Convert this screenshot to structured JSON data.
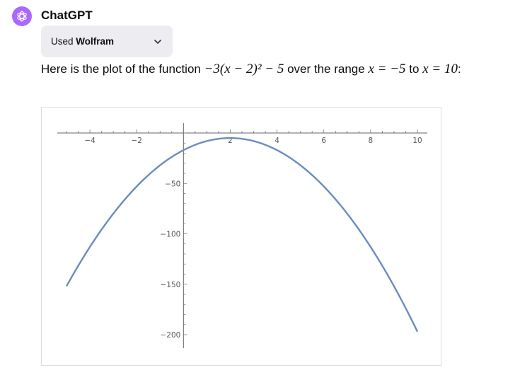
{
  "author": {
    "name": "ChatGPT",
    "avatar_color": "#ab68ff"
  },
  "tool_use": {
    "prefix": "Used",
    "tool_name": "Wolfram"
  },
  "message": {
    "before": "Here is the plot of the function",
    "function_tex": "−3(x − 2)² − 5",
    "middle": "over the range",
    "range_start": "x = −5",
    "to": "to",
    "range_end": "x = 10",
    "end": ":"
  },
  "chart_data": {
    "type": "line",
    "function": "-3(x-2)^2-5",
    "xlim": [
      -5,
      10
    ],
    "ylim": [
      -200,
      10
    ],
    "x": [
      -5,
      -4,
      -3,
      -2,
      -1,
      0,
      1,
      2,
      3,
      4,
      5,
      6,
      7,
      8,
      9,
      10
    ],
    "series": [
      {
        "values": [
          -152,
          -113,
          -80,
          -53,
          -32,
          -17,
          -8,
          -5,
          -8,
          -17,
          -32,
          -53,
          -80,
          -113,
          -152,
          -197
        ],
        "color": "#6a8cbf"
      }
    ],
    "x_ticks": [
      "-4",
      "-2",
      "2",
      "4",
      "6",
      "8",
      "10"
    ],
    "y_ticks": [
      "-50",
      "-100",
      "-150",
      "-200"
    ],
    "grid": false
  }
}
